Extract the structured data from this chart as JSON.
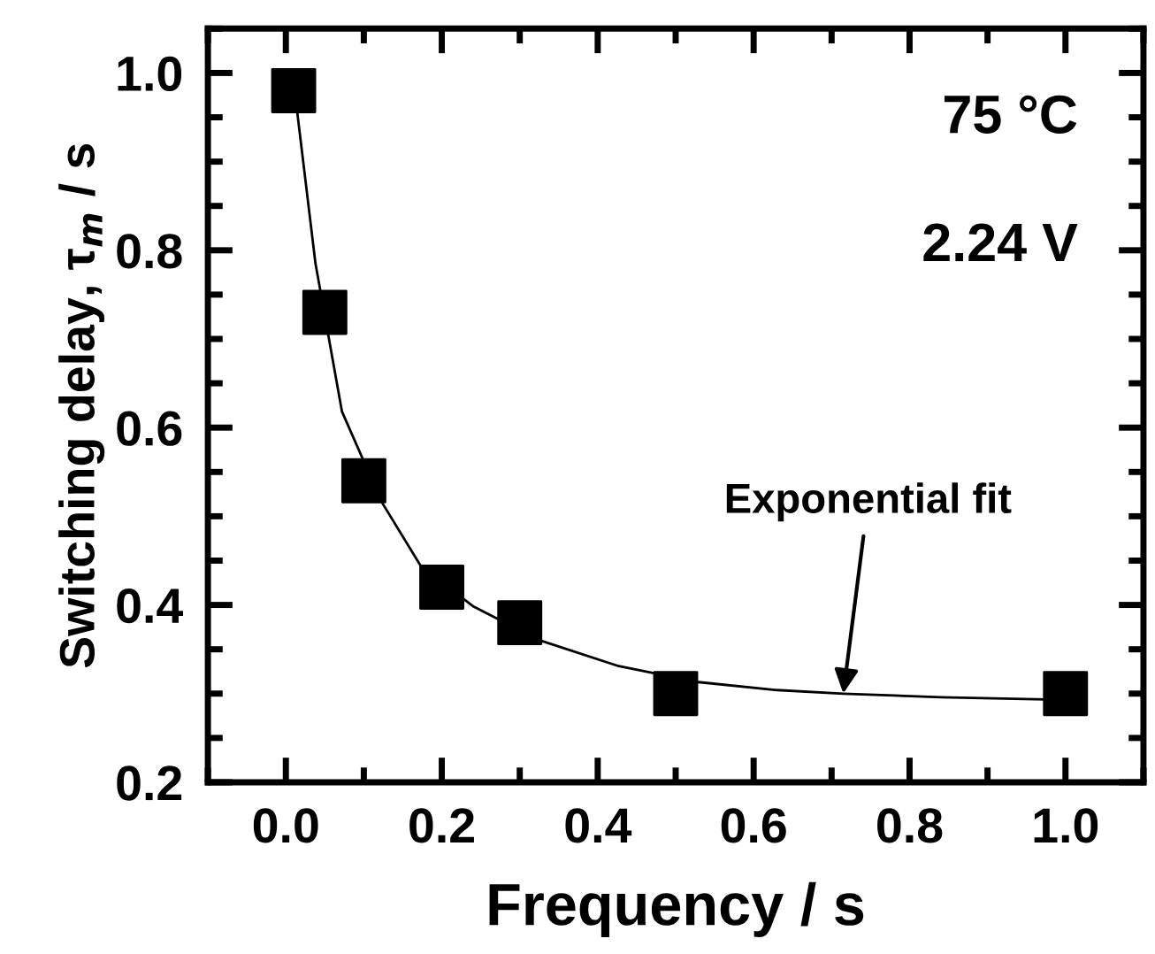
{
  "chart_data": {
    "type": "scatter",
    "xlabel": "Frequency / s",
    "ylabel": "Switching delay, τ$_{m}$ / s",
    "xlim": [
      -0.1,
      1.1
    ],
    "ylim": [
      0.2,
      1.05
    ],
    "xticks": [
      {
        "value": 0,
        "label": "0.0"
      },
      0.2,
      0.4,
      0.6,
      0.8,
      {
        "value": 1,
        "label": "1.0"
      }
    ],
    "yticks": [
      0.2,
      0.4,
      0.6,
      0.8,
      {
        "value": 1,
        "label": "1.0"
      }
    ],
    "series": [
      {
        "marker": "square",
        "color": "#000000",
        "x": [
          0.01,
          0.05,
          0.1,
          0.2,
          0.3,
          0.5,
          1.0
        ],
        "values": [
          0.98,
          0.73,
          0.54,
          0.42,
          0.38,
          0.3,
          0.3
        ]
      },
      {
        "type": "line",
        "marker": "none",
        "line_style": "solid",
        "color": "#000000",
        "x": [
          0.014,
          0.038,
          0.072,
          0.123,
          0.173,
          0.241,
          0.326,
          0.427,
          0.529,
          0.63,
          0.715,
          0.84,
          1.0
        ],
        "values": [
          0.96,
          0.785,
          0.618,
          0.516,
          0.444,
          0.398,
          0.36,
          0.331,
          0.313,
          0.304,
          0.3,
          0.296,
          0.293
        ]
      }
    ],
    "annotations": [
      "75 °C",
      "2.24 V",
      {
        "text": "Exponential fit",
        "x": 0.715,
        "y": 0.3
      }
    ],
    "grid": false,
    "legend": false
  }
}
